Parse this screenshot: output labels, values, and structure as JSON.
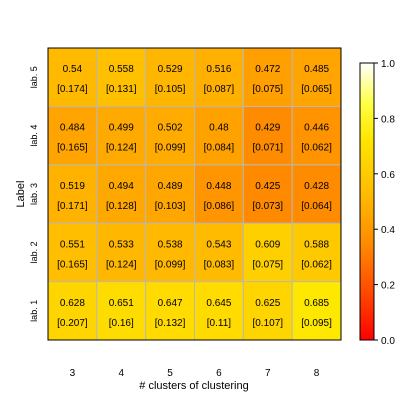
{
  "chart_data": {
    "type": "heatmap",
    "xlabel": "# clusters of clustering",
    "ylabel": "Label",
    "x_categories": [
      "3",
      "4",
      "5",
      "6",
      "7",
      "8"
    ],
    "y_categories": [
      "lab. 1",
      "lab. 2",
      "lab. 3",
      "lab. 4",
      "lab. 5"
    ],
    "rows": [
      {
        "label": "lab. 1",
        "values": [
          "0.628",
          "0.651",
          "0.647",
          "0.645",
          "0.625",
          "0.685"
        ],
        "secondary": [
          "[0.207]",
          "[0.16]",
          "[0.132]",
          "[0.11]",
          "[0.107]",
          "[0.095]"
        ]
      },
      {
        "label": "lab. 2",
        "values": [
          "0.551",
          "0.533",
          "0.538",
          "0.543",
          "0.609",
          "0.588"
        ],
        "secondary": [
          "[0.165]",
          "[0.124]",
          "[0.099]",
          "[0.083]",
          "[0.075]",
          "[0.062]"
        ]
      },
      {
        "label": "lab. 3",
        "values": [
          "0.519",
          "0.494",
          "0.489",
          "0.448",
          "0.425",
          "0.428"
        ],
        "secondary": [
          "[0.171]",
          "[0.128]",
          "[0.103]",
          "[0.086]",
          "[0.073]",
          "[0.064]"
        ]
      },
      {
        "label": "lab. 4",
        "values": [
          "0.484",
          "0.499",
          "0.502",
          "0.48",
          "0.429",
          "0.446"
        ],
        "secondary": [
          "[0.165]",
          "[0.124]",
          "[0.099]",
          "[0.084]",
          "[0.071]",
          "[0.062]"
        ]
      },
      {
        "label": "lab. 5",
        "values": [
          "0.54",
          "0.558",
          "0.529",
          "0.516",
          "0.472",
          "0.485"
        ],
        "secondary": [
          "[0.174]",
          "[0.131]",
          "[0.105]",
          "[0.087]",
          "[0.075]",
          "[0.065]"
        ]
      }
    ],
    "colorbar": {
      "range": [
        0.0,
        1.0
      ],
      "ticks": [
        "0.0",
        "0.2",
        "0.4",
        "0.6",
        "0.8",
        "1.0"
      ],
      "colors": [
        "#ff0000",
        "#ffff00",
        "#ffffff"
      ]
    },
    "grid": true,
    "legend": "colorbar-right"
  }
}
